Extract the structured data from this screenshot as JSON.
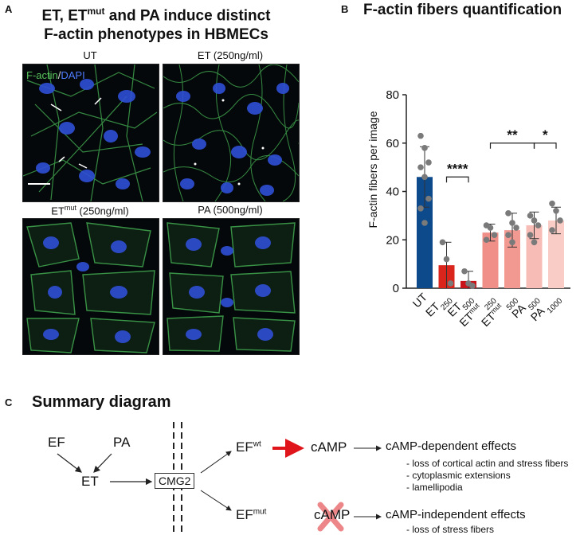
{
  "panelA": {
    "letter": "A",
    "title_line1": "ET, ET",
    "title_sup": "mut",
    "title_line1_rest": " and PA induce distinct",
    "title_line2": "F-actin phenotypes in HBMECs",
    "stain_label_actin": "F-actin",
    "stain_label_sep": "/",
    "stain_label_dapi": "DAPI",
    "images": [
      {
        "label": "UT"
      },
      {
        "label": "ET (250ng/ml)"
      },
      {
        "label_main": "ET",
        "label_sup": "mut",
        "label_rest": " (250ng/ml)"
      },
      {
        "label": "PA (500ng/ml)"
      }
    ]
  },
  "panelB": {
    "letter": "B",
    "title": "F-actin fibers quantification",
    "significance": [
      "****",
      "**",
      "*"
    ]
  },
  "chart_data": {
    "type": "bar",
    "title": "F-actin fibers quantification",
    "ylabel": "F-actin fibers per image",
    "ylim": [
      0,
      80
    ],
    "yticks": [
      0,
      20,
      40,
      60,
      80
    ],
    "categories": [
      "UT",
      "ET250",
      "ET500",
      "ETmut 250",
      "ETmut 500",
      "PA 500",
      "PA 1000"
    ],
    "category_labels": [
      {
        "main": "UT",
        "sub": ""
      },
      {
        "main": "ET",
        "sub": "250"
      },
      {
        "main": "ET",
        "sub": "500"
      },
      {
        "main": "ET",
        "sup": "mut",
        "sub": " 250"
      },
      {
        "main": "ET",
        "sup": "mut",
        "sub": " 500"
      },
      {
        "main": "PA",
        "sub": " 500"
      },
      {
        "main": "PA",
        "sub": " 1000"
      }
    ],
    "values": [
      46,
      9.5,
      3,
      23,
      24,
      26,
      28
    ],
    "errors": [
      12.5,
      9.5,
      4,
      3.5,
      7,
      5.5,
      5.5
    ],
    "colors": [
      "#0d4a8c",
      "#d9251c",
      "#c9151a",
      "#ef8f88",
      "#f29a92",
      "#f7bcb6",
      "#f9ccc6"
    ],
    "points": [
      [
        63,
        58,
        52,
        50,
        46,
        37,
        33,
        27
      ],
      [
        19,
        12,
        2
      ],
      [
        7,
        2,
        1
      ],
      [
        26,
        25,
        22,
        20
      ],
      [
        31,
        27,
        25,
        22,
        19
      ],
      [
        30,
        28,
        26,
        22,
        19
      ],
      [
        35,
        32,
        28,
        24
      ]
    ],
    "brackets": [
      {
        "from": 1,
        "to": 2,
        "label": "****"
      },
      {
        "from": 3,
        "to": 5,
        "label": "**"
      },
      {
        "from": 5,
        "to": 6,
        "label": "*"
      }
    ]
  },
  "panelC": {
    "letter": "C",
    "title": "Summary diagram",
    "ef": "EF",
    "pa": "PA",
    "et": "ET",
    "cmg2": "CMG2",
    "efwt_main": "EF",
    "efwt_sup": "wt",
    "efmut_main": "EF",
    "efmut_sup": "mut",
    "camp1": "cAMP",
    "camp2": "cAMP",
    "dep_effects": "cAMP-dependent effects",
    "dep_list": [
      "- loss of cortical actin and stress fibers",
      "- cytoplasmic extensions",
      "- lamellipodia"
    ],
    "indep_effects": "cAMP-independent effects",
    "indep_list": [
      "- loss of stress fibers"
    ],
    "accent_red": "#e0151b"
  }
}
